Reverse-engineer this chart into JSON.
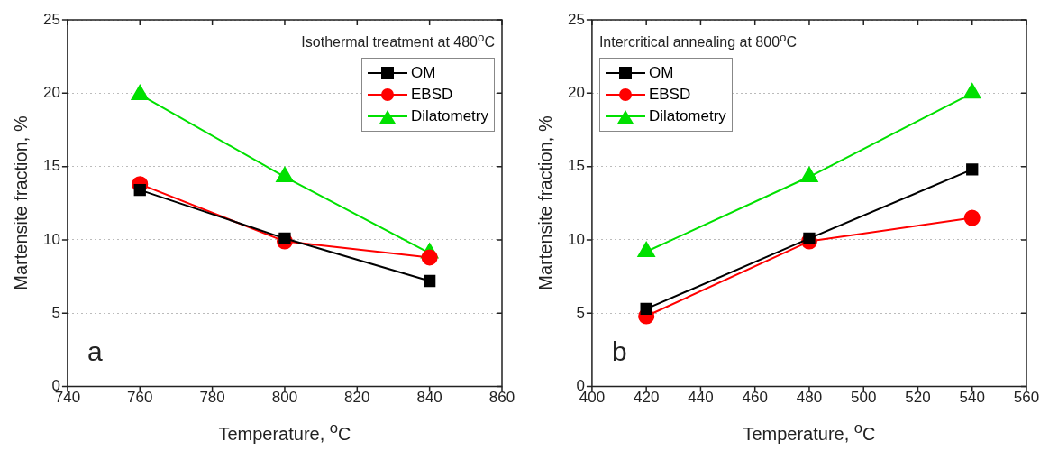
{
  "chart_data": [
    {
      "type": "line",
      "xlabel": "Temperature, $^{o}$C",
      "ylabel": "Martensite fraction, %",
      "annotations": [
        "Isothermal treatment at 480$^{o}$C",
        "a"
      ],
      "x": [
        760,
        800,
        840
      ],
      "series": [
        {
          "name": "OM",
          "color": "#000000",
          "marker": "square",
          "values": [
            13.4,
            10.1,
            7.2
          ]
        },
        {
          "name": "EBSD",
          "color": "#ff0000",
          "marker": "circle",
          "values": [
            13.8,
            9.9,
            8.8
          ]
        },
        {
          "name": "Dilatometry",
          "color": "#00e000",
          "marker": "triangle",
          "values": [
            19.9,
            14.3,
            9.1
          ]
        }
      ],
      "xlim": [
        740,
        860
      ],
      "xticks": [
        740,
        760,
        780,
        800,
        820,
        840,
        860
      ],
      "ylim": [
        0,
        25
      ],
      "yticks": [
        0,
        5,
        10,
        15,
        20,
        25
      ],
      "grid": "y",
      "legend": "top right",
      "line_style": "solid"
    },
    {
      "type": "line",
      "xlabel": "Temperature, $^{o}$C",
      "ylabel": "Martensite fraction, %",
      "annotations": [
        "Intercritical annealing at 800$^{o}$C",
        "b"
      ],
      "x": [
        420,
        480,
        540
      ],
      "series": [
        {
          "name": "OM",
          "color": "#000000",
          "marker": "square",
          "values": [
            5.3,
            10.1,
            14.8
          ]
        },
        {
          "name": "EBSD",
          "color": "#ff0000",
          "marker": "circle",
          "values": [
            4.8,
            9.9,
            11.5
          ]
        },
        {
          "name": "Dilatometry",
          "color": "#00e000",
          "marker": "triangle",
          "values": [
            9.2,
            14.3,
            20
          ]
        }
      ],
      "xlim": [
        400,
        560
      ],
      "xticks": [
        400,
        420,
        440,
        460,
        480,
        500,
        520,
        540,
        560
      ],
      "ylim": [
        0,
        25
      ],
      "yticks": [
        0,
        5,
        10,
        15,
        20,
        25
      ],
      "grid": "y",
      "legend": "top left",
      "line_style": "solid"
    }
  ]
}
